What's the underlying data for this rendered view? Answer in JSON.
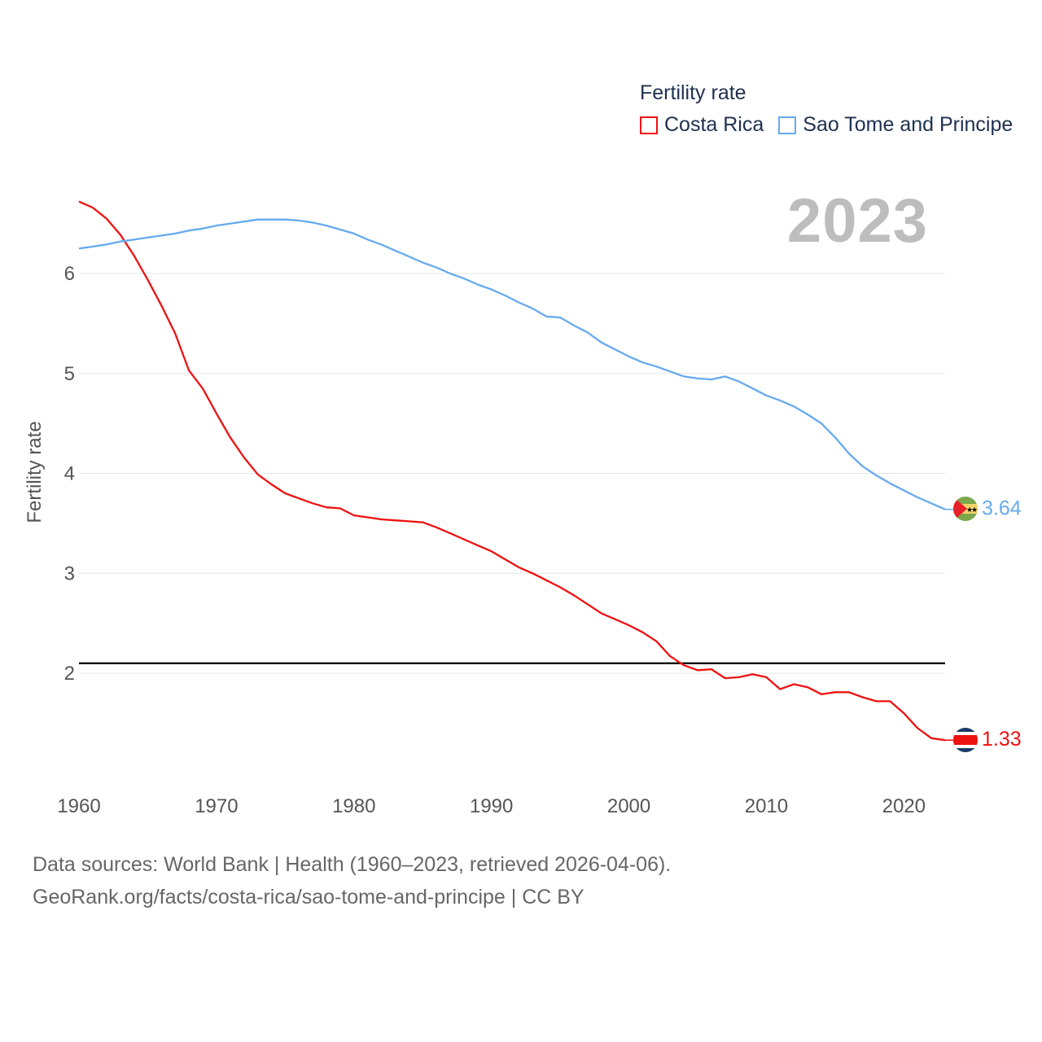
{
  "legend": {
    "title": "Fertility rate",
    "items": [
      {
        "label": "Costa Rica",
        "color": "#ee1111"
      },
      {
        "label": "Sao Tome and Principe",
        "color": "#66aaee"
      }
    ]
  },
  "watermark_year": "2023",
  "footer": {
    "line1": "Data sources: World Bank | Health (1960–2023, retrieved 2026-04-06).",
    "line2": "GeoRank.org/facts/costa-rica/sao-tome-and-principe | CC BY"
  },
  "chart_data": {
    "type": "line",
    "title": "Fertility rate",
    "xlabel": "",
    "ylabel": "Fertility rate",
    "xlim": [
      1960,
      2023
    ],
    "ylim": [
      1.0,
      7.0
    ],
    "x_ticks": [
      1960,
      1970,
      1980,
      1990,
      2000,
      2010,
      2020
    ],
    "y_ticks": [
      2,
      3,
      4,
      5,
      6
    ],
    "grid": true,
    "reference_line": {
      "y": 2.1,
      "color": "#000000"
    },
    "x": [
      1960,
      1961,
      1962,
      1963,
      1964,
      1965,
      1966,
      1967,
      1968,
      1969,
      1970,
      1971,
      1972,
      1973,
      1974,
      1975,
      1976,
      1977,
      1978,
      1979,
      1980,
      1981,
      1982,
      1983,
      1984,
      1985,
      1986,
      1987,
      1988,
      1989,
      1990,
      1991,
      1992,
      1993,
      1994,
      1995,
      1996,
      1997,
      1998,
      1999,
      2000,
      2001,
      2002,
      2003,
      2004,
      2005,
      2006,
      2007,
      2008,
      2009,
      2010,
      2011,
      2012,
      2013,
      2014,
      2015,
      2016,
      2017,
      2018,
      2019,
      2020,
      2021,
      2022,
      2023
    ],
    "series": [
      {
        "name": "Costa Rica",
        "color": "#ee1111",
        "end_label": "1.33",
        "values": [
          6.72,
          6.66,
          6.55,
          6.39,
          6.18,
          5.94,
          5.68,
          5.4,
          5.03,
          4.85,
          4.6,
          4.36,
          4.16,
          3.99,
          3.89,
          3.8,
          3.75,
          3.7,
          3.66,
          3.65,
          3.58,
          3.56,
          3.54,
          3.53,
          3.52,
          3.51,
          3.46,
          3.4,
          3.34,
          3.28,
          3.22,
          3.14,
          3.06,
          3.0,
          2.93,
          2.86,
          2.78,
          2.69,
          2.6,
          2.54,
          2.48,
          2.41,
          2.32,
          2.17,
          2.08,
          2.03,
          2.04,
          1.95,
          1.96,
          1.99,
          1.96,
          1.84,
          1.89,
          1.86,
          1.79,
          1.81,
          1.81,
          1.76,
          1.72,
          1.72,
          1.6,
          1.45,
          1.35,
          1.33
        ]
      },
      {
        "name": "Sao Tome and Principe",
        "color": "#66aaee",
        "end_label": "3.64",
        "values": [
          6.25,
          6.27,
          6.29,
          6.32,
          6.34,
          6.36,
          6.38,
          6.4,
          6.43,
          6.45,
          6.48,
          6.5,
          6.52,
          6.54,
          6.54,
          6.54,
          6.53,
          6.51,
          6.48,
          6.44,
          6.4,
          6.34,
          6.29,
          6.23,
          6.17,
          6.11,
          6.06,
          6.0,
          5.95,
          5.89,
          5.84,
          5.78,
          5.71,
          5.65,
          5.57,
          5.56,
          5.48,
          5.41,
          5.31,
          5.24,
          5.17,
          5.11,
          5.07,
          5.02,
          4.97,
          4.95,
          4.94,
          4.97,
          4.92,
          4.85,
          4.78,
          4.73,
          4.67,
          4.59,
          4.5,
          4.36,
          4.2,
          4.07,
          3.98,
          3.9,
          3.83,
          3.76,
          3.7,
          3.64
        ]
      }
    ]
  }
}
